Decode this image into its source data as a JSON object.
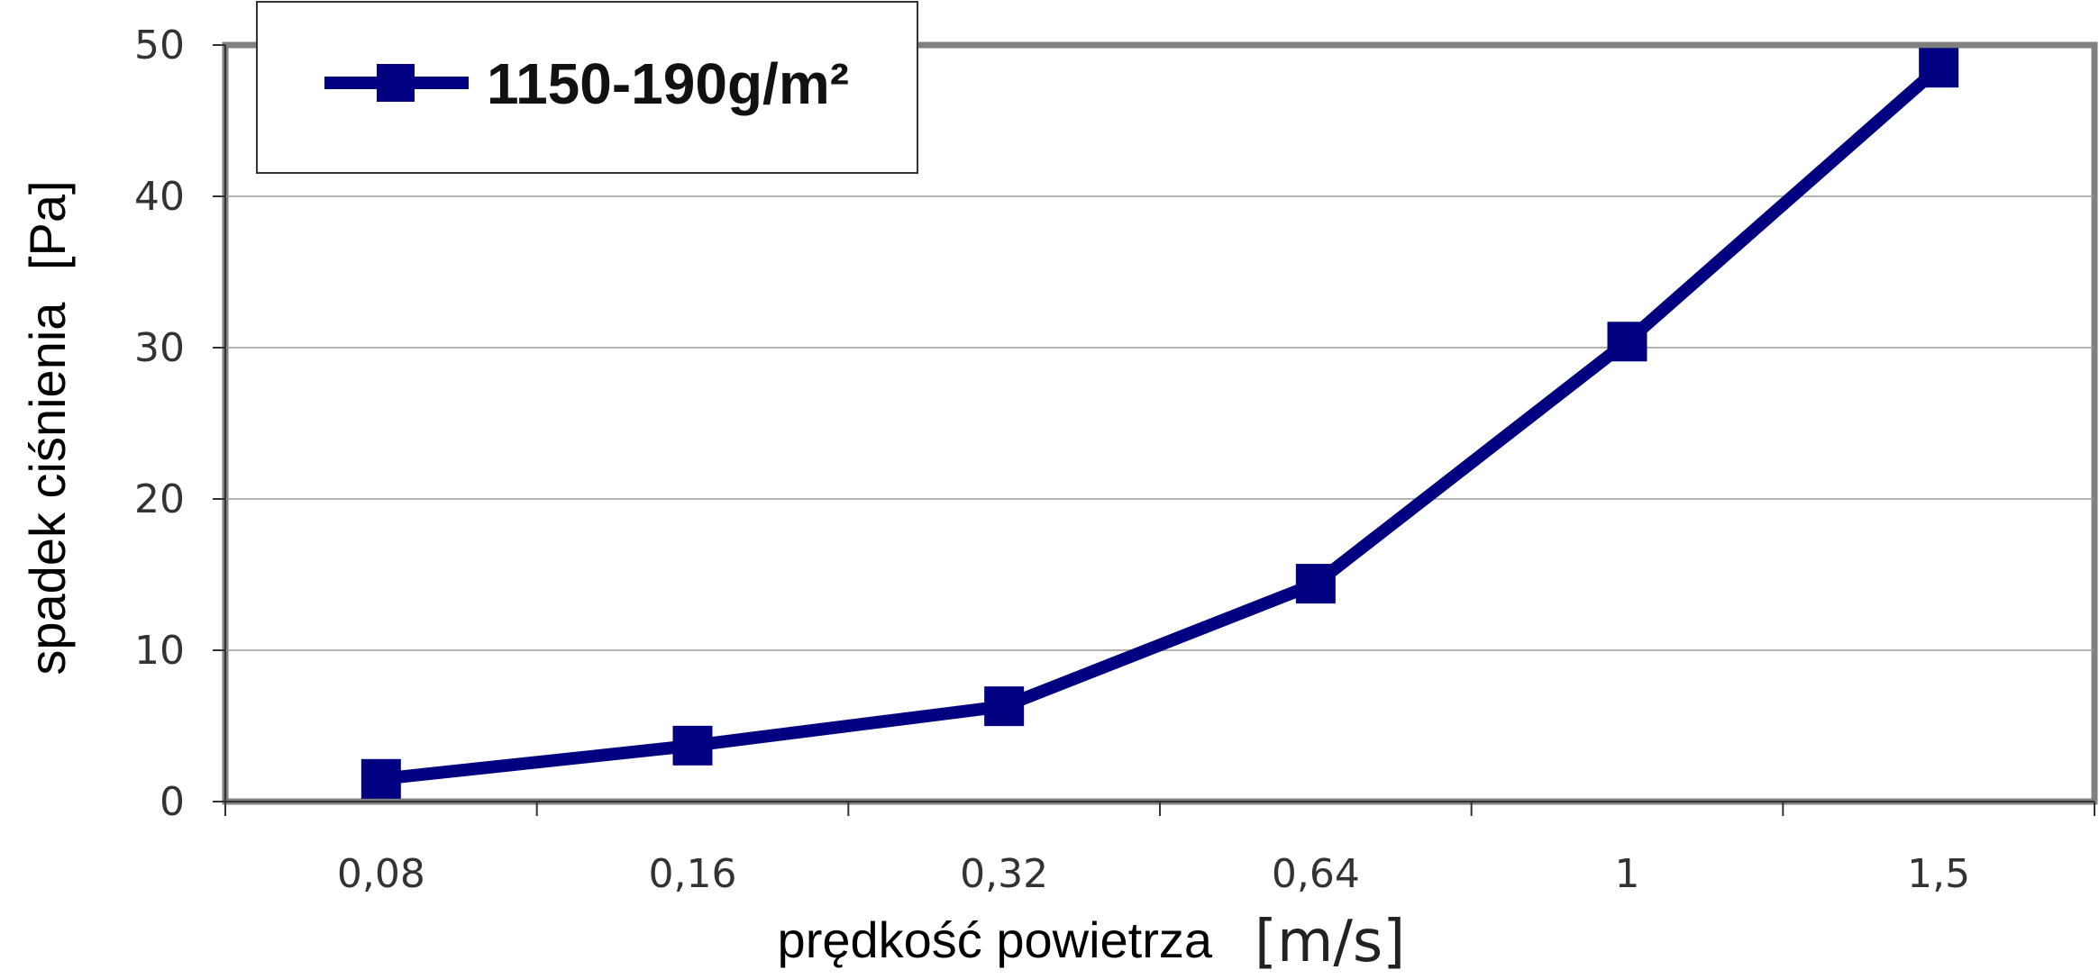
{
  "chart_data": {
    "type": "line",
    "categories": [
      "0,08",
      "0,16",
      "0,32",
      "0,64",
      "1",
      "1,5"
    ],
    "series": [
      {
        "name": "1150-190g/m²",
        "values": [
          1.5,
          3.7,
          6.3,
          14.4,
          30.4,
          48.5
        ],
        "color": "#000080"
      }
    ],
    "xlabel": "prędkość powietrza",
    "xlabel_unit": "[m/s]",
    "ylabel": "spadek ciśnienia",
    "ylabel_unit": "[Pa]",
    "ylim": [
      0,
      50
    ],
    "yticks": [
      "0",
      "10",
      "20",
      "30",
      "40",
      "50"
    ],
    "grid": true,
    "legend_position": "top-left",
    "marker": "square"
  }
}
